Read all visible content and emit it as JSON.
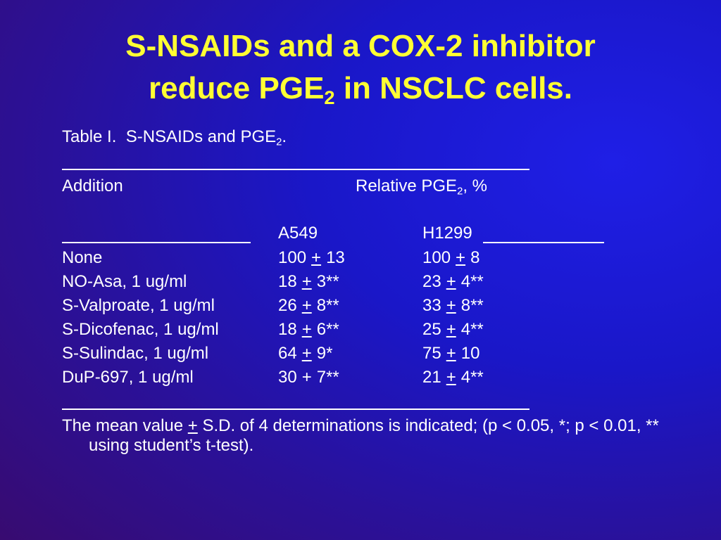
{
  "title": [
    "S-NSAIDs and a COX-2 inhibitor",
    "reduce PGE",
    "2",
    " in NSCLC cells."
  ],
  "table": {
    "caption": [
      "Table I.  S-NSAIDs and PGE",
      "2",
      "."
    ],
    "header": {
      "addition": "Addition",
      "relative": [
        "Relative PGE",
        "2",
        ", %"
      ]
    },
    "columns": [
      "A549",
      "H1299"
    ],
    "rows": [
      {
        "label": "None",
        "cells": [
          {
            "mean": "100",
            "pm": "+",
            "sd": "13",
            "pm_underlined": true
          },
          {
            "mean": "100",
            "pm": "+",
            "sd": "8",
            "pm_underlined": true
          }
        ]
      },
      {
        "label": "NO-Asa, 1 ug/ml",
        "cells": [
          {
            "mean": "18",
            "pm": "+",
            "sd": "3**",
            "pm_underlined": true
          },
          {
            "mean": "23",
            "pm": "+",
            "sd": "4**",
            "pm_underlined": true
          }
        ]
      },
      {
        "label": "S-Valproate, 1 ug/ml",
        "cells": [
          {
            "mean": "26",
            "pm": "+",
            "sd": "8**",
            "pm_underlined": true
          },
          {
            "mean": "33",
            "pm": "+",
            "sd": "8**",
            "pm_underlined": true
          }
        ]
      },
      {
        "label": "S-Dicofenac, 1 ug/ml",
        "cells": [
          {
            "mean": "18",
            "pm": "+",
            "sd": "6**",
            "pm_underlined": true
          },
          {
            "mean": "25",
            "pm": "+",
            "sd": "4**",
            "pm_underlined": true
          }
        ]
      },
      {
        "label": "S-Sulindac, 1 ug/ml",
        "cells": [
          {
            "mean": "64",
            "pm": "+",
            "sd": "9*",
            "pm_underlined": true
          },
          {
            "mean": "75",
            "pm": "+",
            "sd": "10",
            "pm_underlined": true
          }
        ]
      },
      {
        "label": "DuP-697, 1 ug/ml",
        "cells": [
          {
            "mean": "30",
            "pm": "+",
            "sd": "7**",
            "pm_underlined": false
          },
          {
            "mean": "21",
            "pm": "+",
            "sd": "4**",
            "pm_underlined": true
          }
        ]
      }
    ]
  },
  "footnote": {
    "before": "The mean value ",
    "pm": "+",
    "after": " S.D. of 4 determinations is indicated; (p < 0.05, *; p < 0.01, ** using student’s t-test)."
  }
}
